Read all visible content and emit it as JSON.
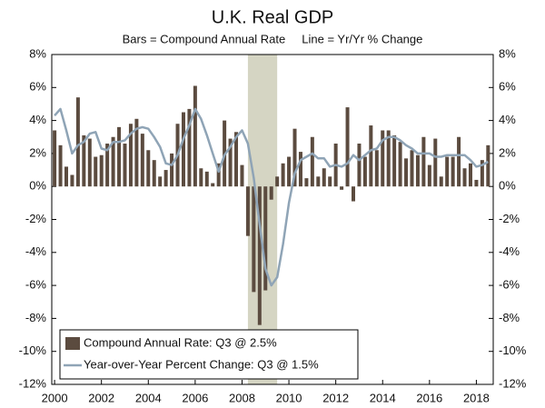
{
  "chart_data": {
    "type": "combo",
    "title": "U.K. Real GDP",
    "subtitle": "Bars = Compound Annual Rate     Line = Yr/Yr % Change",
    "x": [
      2000,
      2000.25,
      2000.5,
      2000.75,
      2001,
      2001.25,
      2001.5,
      2001.75,
      2002,
      2002.25,
      2002.5,
      2002.75,
      2003,
      2003.25,
      2003.5,
      2003.75,
      2004,
      2004.25,
      2004.5,
      2004.75,
      2005,
      2005.25,
      2005.5,
      2005.75,
      2006,
      2006.25,
      2006.5,
      2006.75,
      2007,
      2007.25,
      2007.5,
      2007.75,
      2008,
      2008.25,
      2008.5,
      2008.75,
      2009,
      2009.25,
      2009.5,
      2009.75,
      2010,
      2010.25,
      2010.5,
      2010.75,
      2011,
      2011.25,
      2011.5,
      2011.75,
      2012,
      2012.25,
      2012.5,
      2012.75,
      2013,
      2013.25,
      2013.5,
      2013.75,
      2014,
      2014.25,
      2014.5,
      2014.75,
      2015,
      2015.25,
      2015.5,
      2015.75,
      2016,
      2016.25,
      2016.5,
      2016.75,
      2017,
      2017.25,
      2017.5,
      2017.75,
      2018,
      2018.25,
      2018.5
    ],
    "series": [
      {
        "name": "Compound Annual Rate: Q3 @ 2.5%",
        "type": "bar",
        "color": "#5b4b3f",
        "values": [
          3.4,
          2.5,
          1.2,
          0.7,
          5.4,
          3.1,
          2.9,
          1.8,
          1.9,
          2.6,
          3.0,
          3.6,
          2.6,
          3.8,
          4.1,
          3.2,
          2.2,
          1.6,
          0.6,
          1.0,
          2.0,
          3.8,
          4.5,
          4.7,
          6.1,
          1.1,
          0.9,
          0.2,
          1.4,
          4.0,
          2.9,
          3.3,
          1.3,
          -3.0,
          -6.4,
          -8.4,
          -6.3,
          -0.8,
          0.6,
          1.4,
          1.8,
          3.5,
          2.1,
          0.5,
          3.0,
          0.6,
          1.1,
          0.6,
          2.6,
          -0.2,
          4.8,
          -0.9,
          2.6,
          1.8,
          3.7,
          2.2,
          3.4,
          3.4,
          3.1,
          2.7,
          1.7,
          2.2,
          1.9,
          3.0,
          1.3,
          2.9,
          0.6,
          1.8,
          1.8,
          3.0,
          1.1,
          1.4,
          0.4,
          1.6,
          2.5
        ]
      },
      {
        "name": "Year-over-Year Percent Change: Q3 @ 1.5%",
        "type": "line",
        "color": "#8fa4b6",
        "values": [
          4.3,
          4.7,
          3.4,
          2.0,
          2.5,
          2.7,
          3.2,
          3.3,
          2.3,
          2.2,
          2.7,
          2.7,
          2.8,
          3.2,
          3.5,
          3.6,
          3.5,
          3.0,
          2.4,
          1.4,
          1.3,
          1.9,
          2.9,
          3.7,
          4.7,
          4.1,
          3.1,
          2.0,
          0.9,
          1.9,
          2.4,
          3.0,
          3.4,
          2.6,
          0.5,
          -2.3,
          -5.0,
          -6.0,
          -5.5,
          -3.5,
          -1.0,
          0.8,
          1.6,
          1.8,
          2.0,
          1.7,
          1.7,
          1.2,
          1.3,
          1.2,
          1.4,
          1.9,
          1.6,
          1.9,
          2.2,
          2.3,
          2.8,
          3.0,
          3.0,
          2.8,
          2.5,
          2.3,
          2.0,
          2.0,
          2.0,
          1.8,
          1.8,
          1.9,
          1.9,
          1.9,
          1.9,
          1.6,
          1.2,
          1.3,
          1.5
        ]
      }
    ],
    "shaded_region": {
      "x": [
        2008.25,
        2009.5
      ],
      "color": "#d5d5c3"
    },
    "xlim": [
      1999.88,
      2018.72
    ],
    "xticks": [
      2000,
      2002,
      2004,
      2006,
      2008,
      2010,
      2012,
      2014,
      2016,
      2018
    ],
    "ylim": [
      -12,
      8
    ],
    "yticks": [
      {
        "value": -12,
        "label": "-12%"
      },
      {
        "value": -10,
        "label": "-10%"
      },
      {
        "value": -8,
        "label": "-8%"
      },
      {
        "value": -6,
        "label": "-6%"
      },
      {
        "value": -4,
        "label": "-4%"
      },
      {
        "value": -2,
        "label": "-2%"
      },
      {
        "value": 0,
        "label": "0%"
      },
      {
        "value": 2,
        "label": "2%"
      },
      {
        "value": 4,
        "label": "4%"
      },
      {
        "value": 6,
        "label": "6%"
      },
      {
        "value": 8,
        "label": "8%"
      }
    ],
    "y2lim": [
      -12,
      8
    ],
    "y2ticks": [
      {
        "value": -12,
        "label": "-12%"
      },
      {
        "value": -10,
        "label": "-10%"
      },
      {
        "value": -8,
        "label": "-8%"
      },
      {
        "value": -6,
        "label": "-6%"
      },
      {
        "value": -4,
        "label": "-4%"
      },
      {
        "value": -2,
        "label": "-2%"
      },
      {
        "value": 0,
        "label": "0%"
      },
      {
        "value": 2,
        "label": "2%"
      },
      {
        "value": 4,
        "label": "4%"
      },
      {
        "value": 6,
        "label": "6%"
      },
      {
        "value": 8,
        "label": "8%"
      }
    ],
    "grid": false,
    "legend": "lower-left"
  }
}
